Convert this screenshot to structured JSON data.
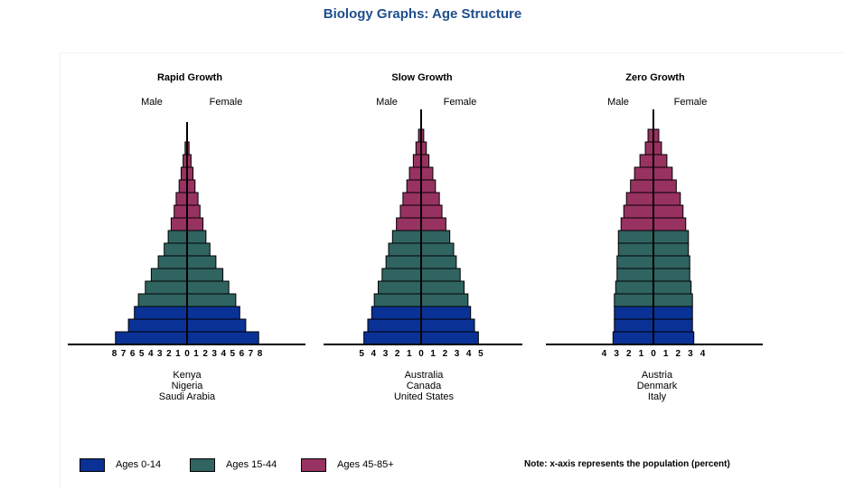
{
  "title": "Biology Graphs: Age Structure",
  "colors": {
    "title": "#1f4e8c",
    "ages_0_14": "#0a3296",
    "ages_15_44": "#2f6461",
    "ages_45_85": "#983261"
  },
  "legend": [
    {
      "label": "Ages 0-14",
      "color": "#0a3296"
    },
    {
      "label": "Ages 15-44",
      "color": "#2f6461"
    },
    {
      "label": "Ages 45-85+",
      "color": "#983261"
    }
  ],
  "note": "Note: x-axis represents the population (percent)",
  "chart_data": [
    {
      "type": "bar",
      "title": "Rapid Growth",
      "male_label": "Male",
      "female_label": "Female",
      "xticks_left": [
        "8",
        "7",
        "6",
        "5",
        "4",
        "3",
        "2",
        "1",
        "0"
      ],
      "xticks_right": [
        "1",
        "2",
        "3",
        "4",
        "5",
        "6",
        "7",
        "8"
      ],
      "countries": [
        "Kenya",
        "Nigeria",
        "Saudi Arabia"
      ],
      "bars": [
        {
          "male": 7.2,
          "female": 7.2,
          "group": "ages_0_14"
        },
        {
          "male": 5.9,
          "female": 5.9,
          "group": "ages_0_14"
        },
        {
          "male": 5.3,
          "female": 5.3,
          "group": "ages_0_14"
        },
        {
          "male": 4.9,
          "female": 4.9,
          "group": "ages_15_44"
        },
        {
          "male": 4.2,
          "female": 4.2,
          "group": "ages_15_44"
        },
        {
          "male": 3.6,
          "female": 3.6,
          "group": "ages_15_44"
        },
        {
          "male": 2.9,
          "female": 2.9,
          "group": "ages_15_44"
        },
        {
          "male": 2.3,
          "female": 2.3,
          "group": "ages_15_44"
        },
        {
          "male": 1.9,
          "female": 1.9,
          "group": "ages_15_44"
        },
        {
          "male": 1.6,
          "female": 1.6,
          "group": "ages_45_85"
        },
        {
          "male": 1.3,
          "female": 1.3,
          "group": "ages_45_85"
        },
        {
          "male": 1.1,
          "female": 1.1,
          "group": "ages_45_85"
        },
        {
          "male": 0.8,
          "female": 0.8,
          "group": "ages_45_85"
        },
        {
          "male": 0.6,
          "female": 0.6,
          "group": "ages_45_85"
        },
        {
          "male": 0.4,
          "female": 0.4,
          "group": "ages_45_85"
        },
        {
          "male": 0.2,
          "female": 0.2,
          "group": "ages_45_85"
        }
      ]
    },
    {
      "type": "bar",
      "title": "Slow Growth",
      "male_label": "Male",
      "female_label": "Female",
      "xticks_left": [
        "5",
        "4",
        "3",
        "2",
        "1",
        "0"
      ],
      "xticks_right": [
        "1",
        "2",
        "3",
        "4",
        "5"
      ],
      "countries": [
        "Australia",
        "Canada",
        "United States"
      ],
      "bars": [
        {
          "male": 4.4,
          "female": 4.4,
          "group": "ages_0_14"
        },
        {
          "male": 4.1,
          "female": 4.1,
          "group": "ages_0_14"
        },
        {
          "male": 3.8,
          "female": 3.8,
          "group": "ages_0_14"
        },
        {
          "male": 3.6,
          "female": 3.6,
          "group": "ages_15_44"
        },
        {
          "male": 3.3,
          "female": 3.3,
          "group": "ages_15_44"
        },
        {
          "male": 3.0,
          "female": 3.0,
          "group": "ages_15_44"
        },
        {
          "male": 2.7,
          "female": 2.7,
          "group": "ages_15_44"
        },
        {
          "male": 2.5,
          "female": 2.5,
          "group": "ages_15_44"
        },
        {
          "male": 2.2,
          "female": 2.2,
          "group": "ages_15_44"
        },
        {
          "male": 1.9,
          "female": 1.9,
          "group": "ages_45_85"
        },
        {
          "male": 1.6,
          "female": 1.6,
          "group": "ages_45_85"
        },
        {
          "male": 1.4,
          "female": 1.4,
          "group": "ages_45_85"
        },
        {
          "male": 1.1,
          "female": 1.1,
          "group": "ages_45_85"
        },
        {
          "male": 0.9,
          "female": 0.9,
          "group": "ages_45_85"
        },
        {
          "male": 0.6,
          "female": 0.6,
          "group": "ages_45_85"
        },
        {
          "male": 0.4,
          "female": 0.4,
          "group": "ages_45_85"
        },
        {
          "male": 0.2,
          "female": 0.2,
          "group": "ages_45_85"
        }
      ]
    },
    {
      "type": "bar",
      "title": "Zero Growth",
      "male_label": "Male",
      "female_label": "Female",
      "xticks_left": [
        "4",
        "3",
        "2",
        "1",
        "0"
      ],
      "xticks_right": [
        "1",
        "2",
        "3",
        "4"
      ],
      "countries": [
        "Austria",
        "Denmark",
        "Italy"
      ],
      "bars": [
        {
          "male": 3.0,
          "female": 3.0,
          "group": "ages_0_14"
        },
        {
          "male": 2.9,
          "female": 2.9,
          "group": "ages_0_14"
        },
        {
          "male": 2.9,
          "female": 2.9,
          "group": "ages_0_14"
        },
        {
          "male": 2.9,
          "female": 2.9,
          "group": "ages_15_44"
        },
        {
          "male": 2.8,
          "female": 2.8,
          "group": "ages_15_44"
        },
        {
          "male": 2.7,
          "female": 2.7,
          "group": "ages_15_44"
        },
        {
          "male": 2.7,
          "female": 2.7,
          "group": "ages_15_44"
        },
        {
          "male": 2.6,
          "female": 2.6,
          "group": "ages_15_44"
        },
        {
          "male": 2.6,
          "female": 2.6,
          "group": "ages_15_44"
        },
        {
          "male": 2.4,
          "female": 2.4,
          "group": "ages_45_85"
        },
        {
          "male": 2.2,
          "female": 2.2,
          "group": "ages_45_85"
        },
        {
          "male": 2.0,
          "female": 2.0,
          "group": "ages_45_85"
        },
        {
          "male": 1.7,
          "female": 1.7,
          "group": "ages_45_85"
        },
        {
          "male": 1.4,
          "female": 1.4,
          "group": "ages_45_85"
        },
        {
          "male": 1.0,
          "female": 1.0,
          "group": "ages_45_85"
        },
        {
          "male": 0.6,
          "female": 0.6,
          "group": "ages_45_85"
        },
        {
          "male": 0.4,
          "female": 0.4,
          "group": "ages_45_85"
        }
      ]
    }
  ]
}
